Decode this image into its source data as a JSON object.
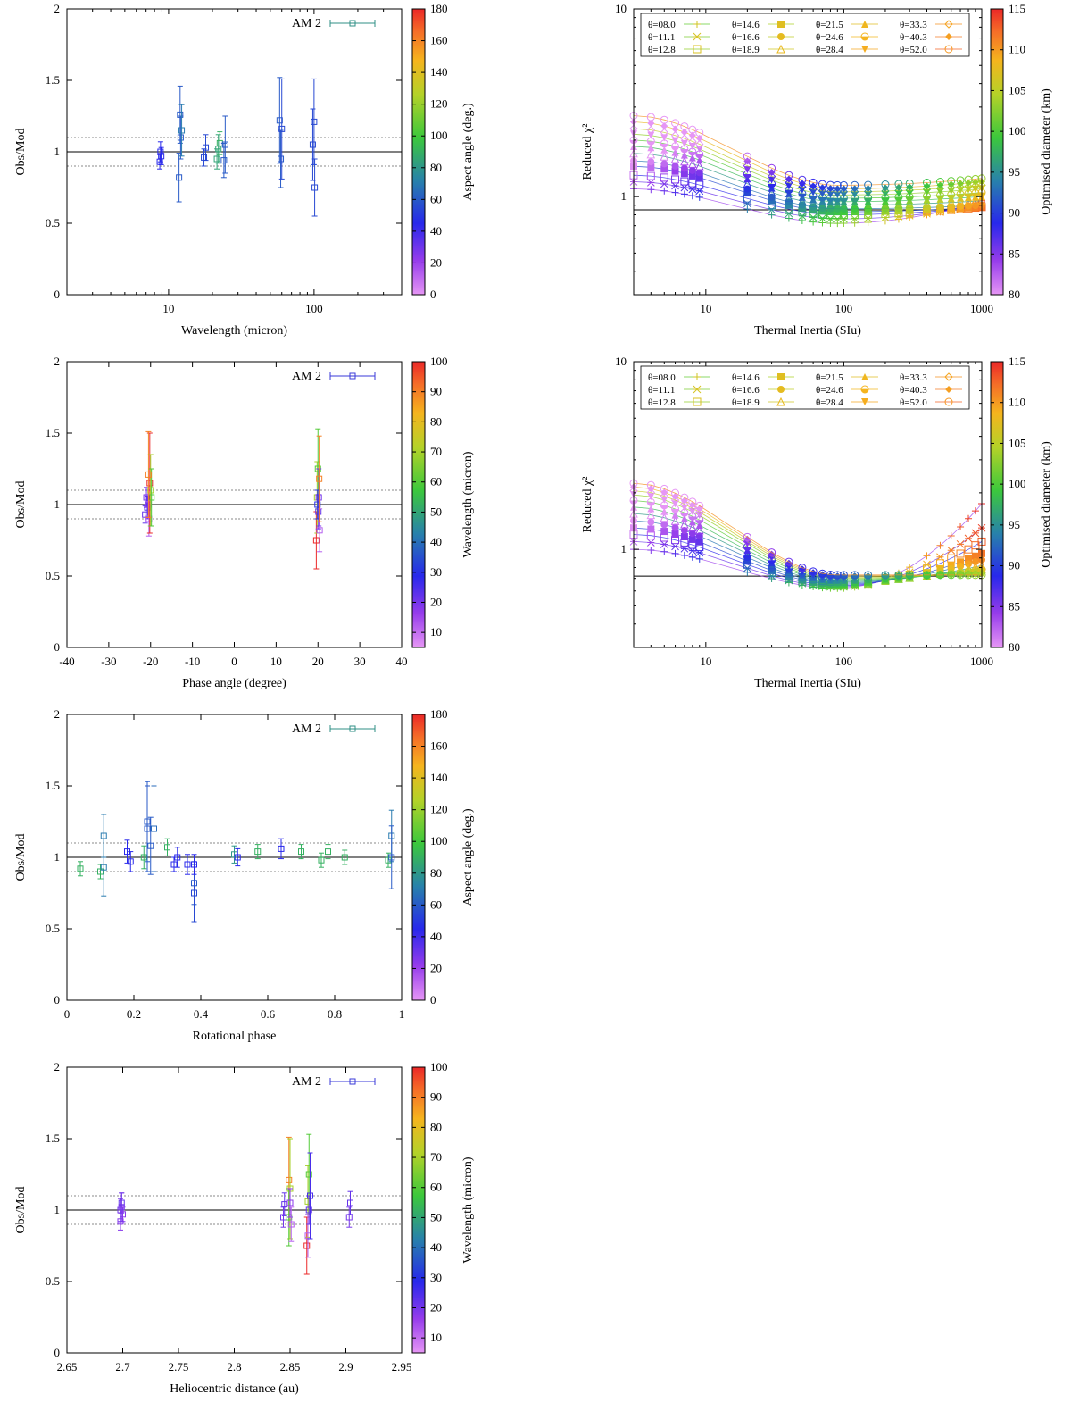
{
  "colors": {
    "data_main": "#2f8f86",
    "data_blue": "#3a3ad8",
    "axis": "#000000",
    "dotted": "#888888"
  },
  "chart_data": [
    {
      "id": "p1",
      "type": "scatter",
      "xlabel": "Wavelength (micron)",
      "ylabel": "Obs/Mod",
      "xscale": "log",
      "xlim": [
        2,
        400
      ],
      "ylim": [
        0,
        2
      ],
      "xticks": [
        10,
        100
      ],
      "yticks": [
        0,
        0.5,
        1,
        1.5,
        2
      ],
      "legend": "AM 2",
      "colorbar": {
        "label": "Aspect angle (deg.)",
        "min": 0,
        "max": 180,
        "ticks": [
          0,
          20,
          40,
          60,
          80,
          100,
          120,
          140,
          160,
          180
        ]
      },
      "points": [
        {
          "x": 8.7,
          "y": 0.93,
          "e": 0.05,
          "c": 45
        },
        {
          "x": 8.8,
          "y": 1.0,
          "e": 0.07,
          "c": 45
        },
        {
          "x": 8.9,
          "y": 0.97,
          "e": 0.06,
          "c": 45
        },
        {
          "x": 11.8,
          "y": 0.82,
          "e": 0.17,
          "c": 60
        },
        {
          "x": 12.0,
          "y": 1.26,
          "e": 0.2,
          "c": 60
        },
        {
          "x": 12.1,
          "y": 1.1,
          "e": 0.15,
          "c": 60
        },
        {
          "x": 12.3,
          "y": 1.15,
          "e": 0.18,
          "c": 70
        },
        {
          "x": 17.5,
          "y": 0.96,
          "e": 0.06,
          "c": 55
        },
        {
          "x": 18.0,
          "y": 1.03,
          "e": 0.09,
          "c": 55
        },
        {
          "x": 21.5,
          "y": 0.95,
          "e": 0.07,
          "c": 85
        },
        {
          "x": 22.0,
          "y": 1.02,
          "e": 0.1,
          "c": 85
        },
        {
          "x": 22.5,
          "y": 1.06,
          "e": 0.08,
          "c": 90
        },
        {
          "x": 24.0,
          "y": 0.94,
          "e": 0.12,
          "c": 60
        },
        {
          "x": 24.5,
          "y": 1.05,
          "e": 0.2,
          "c": 60
        },
        {
          "x": 58,
          "y": 1.22,
          "e": 0.3,
          "c": 60
        },
        {
          "x": 59,
          "y": 0.95,
          "e": 0.2,
          "c": 60
        },
        {
          "x": 60,
          "y": 1.16,
          "e": 0.35,
          "c": 55
        },
        {
          "x": 98,
          "y": 1.05,
          "e": 0.25,
          "c": 55
        },
        {
          "x": 100,
          "y": 1.21,
          "e": 0.3,
          "c": 55
        },
        {
          "x": 101,
          "y": 0.75,
          "e": 0.2,
          "c": 55
        }
      ]
    },
    {
      "id": "p2",
      "type": "line",
      "xlabel": "Thermal Inertia (SIu)",
      "ylabel": "Reduced χ²",
      "xscale": "log",
      "yscale": "log",
      "xlim": [
        3,
        1000
      ],
      "ylim": [
        0.3,
        10
      ],
      "xticks": [
        10,
        100,
        1000
      ],
      "yticks": [
        1,
        10
      ],
      "legend_entries": [
        "θ=08.0",
        "θ=11.1",
        "θ=12.8",
        "θ=14.6",
        "θ=16.6",
        "θ=18.9",
        "θ=21.5",
        "θ=24.6",
        "θ=28.4",
        "θ=33.3",
        "θ=40.3",
        "θ=52.0"
      ],
      "colorbar": {
        "label": "Optimised diameter (km)",
        "min": 80,
        "max": 115,
        "ticks": [
          80,
          85,
          90,
          95,
          100,
          105,
          110,
          115
        ]
      },
      "hline": 0.85,
      "series_start": [
        1.1,
        1.2,
        1.3,
        1.45,
        1.55,
        1.7,
        1.85,
        2.0,
        2.15,
        2.3,
        2.5,
        2.7
      ],
      "series_min": [
        0.72,
        0.76,
        0.8,
        0.83,
        0.86,
        0.9,
        0.94,
        0.98,
        1.02,
        1.06,
        1.1,
        1.15
      ],
      "series_end": [
        0.95,
        0.9,
        0.88,
        0.88,
        0.9,
        0.95,
        1.0,
        1.05,
        1.1,
        1.15,
        1.2,
        1.25
      ]
    },
    {
      "id": "p3",
      "type": "scatter",
      "xlabel": "Phase angle (degree)",
      "ylabel": "Obs/Mod",
      "xlim": [
        -40,
        40
      ],
      "ylim": [
        0,
        2
      ],
      "xticks": [
        -40,
        -30,
        -20,
        -10,
        0,
        10,
        20,
        30,
        40
      ],
      "yticks": [
        0,
        0.5,
        1,
        1.5,
        2
      ],
      "legend": "AM 2",
      "colorbar": {
        "label": "Wavelength (micron)",
        "min": 5,
        "max": 100,
        "ticks": [
          10,
          20,
          30,
          40,
          50,
          60,
          70,
          80,
          90,
          100
        ]
      },
      "points": [
        {
          "x": -21.3,
          "y": 0.93,
          "e": 0.06,
          "c": 22
        },
        {
          "x": -21.0,
          "y": 1.05,
          "e": 0.07,
          "c": 20
        },
        {
          "x": -20.8,
          "y": 0.98,
          "e": 0.08,
          "c": 24
        },
        {
          "x": -20.6,
          "y": 1.0,
          "e": 0.1,
          "c": 18
        },
        {
          "x": -20.4,
          "y": 0.9,
          "e": 0.12,
          "c": 12
        },
        {
          "x": -20.2,
          "y": 1.15,
          "e": 0.35,
          "c": 100
        },
        {
          "x": -20.0,
          "y": 1.1,
          "e": 0.25,
          "c": 70
        },
        {
          "x": -19.8,
          "y": 1.05,
          "e": 0.2,
          "c": 60
        },
        {
          "x": -20.5,
          "y": 1.21,
          "e": 0.3,
          "c": 90
        },
        {
          "x": 19.6,
          "y": 0.75,
          "e": 0.2,
          "c": 100
        },
        {
          "x": 19.8,
          "y": 1.05,
          "e": 0.25,
          "c": 70
        },
        {
          "x": 20.0,
          "y": 1.25,
          "e": 0.28,
          "c": 60
        },
        {
          "x": 20.1,
          "y": 0.95,
          "e": 0.12,
          "c": 22
        },
        {
          "x": 20.2,
          "y": 1.05,
          "e": 0.2,
          "c": 20
        },
        {
          "x": 20.4,
          "y": 0.82,
          "e": 0.15,
          "c": 12
        },
        {
          "x": 19.9,
          "y": 1.0,
          "e": 0.1,
          "c": 30
        },
        {
          "x": 20.3,
          "y": 1.18,
          "e": 0.3,
          "c": 90
        }
      ]
    },
    {
      "id": "p4",
      "type": "line",
      "xlabel": "Thermal Inertia (SIu)",
      "ylabel": "Reduced χ²",
      "xscale": "log",
      "yscale": "log",
      "xlim": [
        3,
        1000
      ],
      "ylim": [
        0.3,
        10
      ],
      "xticks": [
        10,
        100,
        1000
      ],
      "yticks": [
        1,
        10
      ],
      "legend_entries": [
        "θ=08.0",
        "θ=11.1",
        "θ=12.8",
        "θ=14.6",
        "θ=16.6",
        "θ=18.9",
        "θ=21.5",
        "θ=24.6",
        "θ=28.4",
        "θ=33.3",
        "θ=40.3",
        "θ=52.0"
      ],
      "colorbar": {
        "label": "Optimised diameter (km)",
        "min": 80,
        "max": 115,
        "ticks": [
          80,
          85,
          90,
          95,
          100,
          105,
          110,
          115
        ]
      },
      "hline": 0.72,
      "series_start": [
        1.0,
        1.1,
        1.2,
        1.3,
        1.42,
        1.55,
        1.68,
        1.82,
        1.95,
        2.05,
        2.15,
        2.25
      ],
      "series_min": [
        0.62,
        0.63,
        0.64,
        0.65,
        0.66,
        0.67,
        0.68,
        0.69,
        0.7,
        0.71,
        0.72,
        0.73
      ],
      "series_end": [
        1.75,
        1.3,
        1.1,
        0.95,
        0.88,
        0.82,
        0.8,
        0.78,
        0.76,
        0.75,
        0.74,
        0.73
      ]
    },
    {
      "id": "p5",
      "type": "scatter",
      "xlabel": "Rotational phase",
      "ylabel": "Obs/Mod",
      "xlim": [
        0,
        1
      ],
      "ylim": [
        0,
        2
      ],
      "xticks": [
        0,
        0.2,
        0.4,
        0.6,
        0.8,
        1
      ],
      "yticks": [
        0,
        0.5,
        1,
        1.5,
        2
      ],
      "legend": "AM 2",
      "colorbar": {
        "label": "Aspect angle (deg.)",
        "min": 0,
        "max": 180,
        "ticks": [
          0,
          20,
          40,
          60,
          80,
          100,
          120,
          140,
          160,
          180
        ]
      },
      "points": [
        {
          "x": 0.04,
          "y": 0.92,
          "e": 0.05,
          "c": 90
        },
        {
          "x": 0.1,
          "y": 0.9,
          "e": 0.05,
          "c": 90
        },
        {
          "x": 0.11,
          "y": 0.93,
          "e": 0.2,
          "c": 70
        },
        {
          "x": 0.11,
          "y": 1.15,
          "e": 0.15,
          "c": 70
        },
        {
          "x": 0.18,
          "y": 1.04,
          "e": 0.08,
          "c": 45
        },
        {
          "x": 0.19,
          "y": 0.97,
          "e": 0.07,
          "c": 45
        },
        {
          "x": 0.23,
          "y": 1.0,
          "e": 0.08,
          "c": 90
        },
        {
          "x": 0.24,
          "y": 1.25,
          "e": 0.28,
          "c": 60
        },
        {
          "x": 0.24,
          "y": 1.2,
          "e": 0.3,
          "c": 60
        },
        {
          "x": 0.25,
          "y": 1.08,
          "e": 0.2,
          "c": 60
        },
        {
          "x": 0.26,
          "y": 1.2,
          "e": 0.3,
          "c": 65
        },
        {
          "x": 0.3,
          "y": 1.07,
          "e": 0.06,
          "c": 90
        },
        {
          "x": 0.32,
          "y": 0.95,
          "e": 0.05,
          "c": 45
        },
        {
          "x": 0.33,
          "y": 1.0,
          "e": 0.07,
          "c": 45
        },
        {
          "x": 0.36,
          "y": 0.95,
          "e": 0.07,
          "c": 45
        },
        {
          "x": 0.38,
          "y": 0.82,
          "e": 0.15,
          "c": 60
        },
        {
          "x": 0.38,
          "y": 0.75,
          "e": 0.2,
          "c": 55
        },
        {
          "x": 0.38,
          "y": 0.95,
          "e": 0.07,
          "c": 45
        },
        {
          "x": 0.5,
          "y": 1.02,
          "e": 0.06,
          "c": 80
        },
        {
          "x": 0.51,
          "y": 1.0,
          "e": 0.06,
          "c": 45
        },
        {
          "x": 0.57,
          "y": 1.04,
          "e": 0.05,
          "c": 90
        },
        {
          "x": 0.64,
          "y": 1.06,
          "e": 0.07,
          "c": 45
        },
        {
          "x": 0.7,
          "y": 1.04,
          "e": 0.05,
          "c": 90
        },
        {
          "x": 0.76,
          "y": 0.98,
          "e": 0.05,
          "c": 90
        },
        {
          "x": 0.78,
          "y": 1.04,
          "e": 0.05,
          "c": 90
        },
        {
          "x": 0.83,
          "y": 1.0,
          "e": 0.05,
          "c": 90
        },
        {
          "x": 0.96,
          "y": 0.98,
          "e": 0.05,
          "c": 90
        },
        {
          "x": 0.97,
          "y": 1.15,
          "e": 0.18,
          "c": 70
        },
        {
          "x": 0.97,
          "y": 1.0,
          "e": 0.22,
          "c": 60
        }
      ]
    },
    {
      "id": "p6",
      "type": "scatter",
      "xlabel": "Heliocentric distance (au)",
      "ylabel": "Obs/Mod",
      "xlim": [
        2.65,
        2.95
      ],
      "ylim": [
        0,
        2
      ],
      "xticks": [
        2.65,
        2.7,
        2.75,
        2.8,
        2.85,
        2.9,
        2.95
      ],
      "yticks": [
        0,
        0.5,
        1,
        1.5,
        2
      ],
      "legend": "AM 2",
      "colorbar": {
        "label": "Wavelength (micron)",
        "min": 5,
        "max": 100,
        "ticks": [
          10,
          20,
          30,
          40,
          50,
          60,
          70,
          80,
          90,
          100
        ]
      },
      "points": [
        {
          "x": 2.698,
          "y": 0.92,
          "e": 0.06,
          "c": 18
        },
        {
          "x": 2.698,
          "y": 1.0,
          "e": 0.08,
          "c": 20
        },
        {
          "x": 2.699,
          "y": 1.05,
          "e": 0.07,
          "c": 22
        },
        {
          "x": 2.7,
          "y": 0.97,
          "e": 0.05,
          "c": 18
        },
        {
          "x": 2.699,
          "y": 1.02,
          "e": 0.1,
          "c": 20
        },
        {
          "x": 2.844,
          "y": 0.95,
          "e": 0.07,
          "c": 20
        },
        {
          "x": 2.845,
          "y": 1.04,
          "e": 0.08,
          "c": 22
        },
        {
          "x": 2.849,
          "y": 1.21,
          "e": 0.3,
          "c": 90
        },
        {
          "x": 2.85,
          "y": 1.15,
          "e": 0.35,
          "c": 70
        },
        {
          "x": 2.849,
          "y": 0.95,
          "e": 0.2,
          "c": 60
        },
        {
          "x": 2.85,
          "y": 1.05,
          "e": 0.1,
          "c": 18
        },
        {
          "x": 2.851,
          "y": 0.9,
          "e": 0.12,
          "c": 12
        },
        {
          "x": 2.865,
          "y": 0.75,
          "e": 0.2,
          "c": 100
        },
        {
          "x": 2.866,
          "y": 1.06,
          "e": 0.25,
          "c": 70
        },
        {
          "x": 2.867,
          "y": 1.25,
          "e": 0.28,
          "c": 60
        },
        {
          "x": 2.866,
          "y": 0.82,
          "e": 0.15,
          "c": 12
        },
        {
          "x": 2.867,
          "y": 1.0,
          "e": 0.1,
          "c": 22
        },
        {
          "x": 2.868,
          "y": 1.1,
          "e": 0.3,
          "c": 25
        },
        {
          "x": 2.903,
          "y": 0.95,
          "e": 0.07,
          "c": 20
        },
        {
          "x": 2.904,
          "y": 1.05,
          "e": 0.08,
          "c": 22
        }
      ]
    }
  ]
}
